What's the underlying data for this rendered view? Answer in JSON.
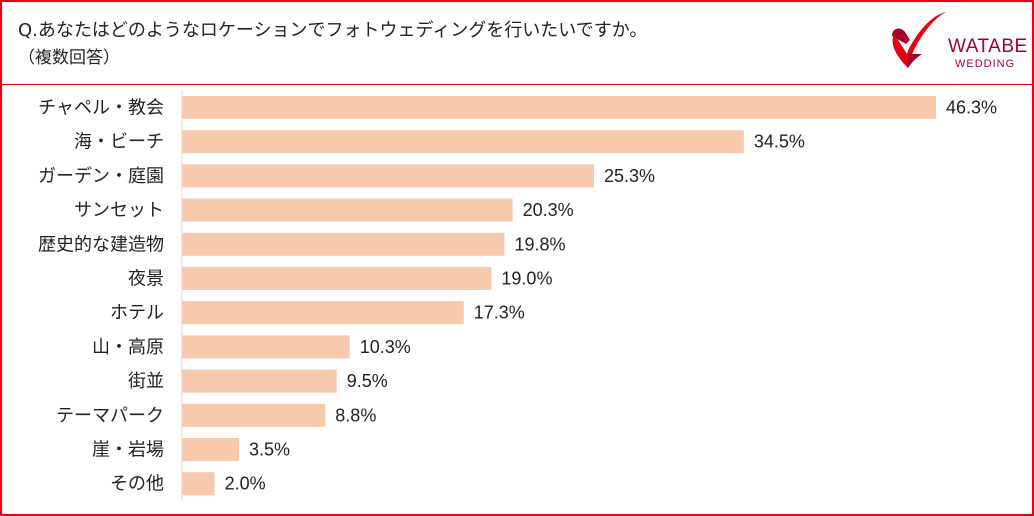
{
  "header": {
    "question": "Q.あなたはどのようなロケーションでフォトウェディングを行いたいですか。",
    "note": "（複数回答）"
  },
  "logo": {
    "name": "WATABE",
    "sub": "WEDDING",
    "accent": "#e60012",
    "brand_color": "#a3002c"
  },
  "chart_data": {
    "type": "bar",
    "orientation": "horizontal",
    "categories": [
      "チャペル・教会",
      "海・ビーチ",
      "ガーデン・庭園",
      "サンセット",
      "歴史的な建造物",
      "夜景",
      "ホテル",
      "山・高原",
      "街並",
      "テーマパーク",
      "崖・岩場",
      "その他"
    ],
    "values": [
      46.3,
      34.5,
      25.3,
      20.3,
      19.8,
      19.0,
      17.3,
      10.3,
      9.5,
      8.8,
      3.5,
      2.0
    ],
    "value_labels": [
      "46.3%",
      "34.5%",
      "25.3%",
      "20.3%",
      "19.8%",
      "19.0%",
      "17.3%",
      "10.3%",
      "9.5%",
      "8.8%",
      "3.5%",
      "2.0%"
    ],
    "xlim": [
      0,
      46.3
    ],
    "bar_color": "#f7caae",
    "grid": false,
    "title": "",
    "xlabel": "",
    "ylabel": ""
  }
}
